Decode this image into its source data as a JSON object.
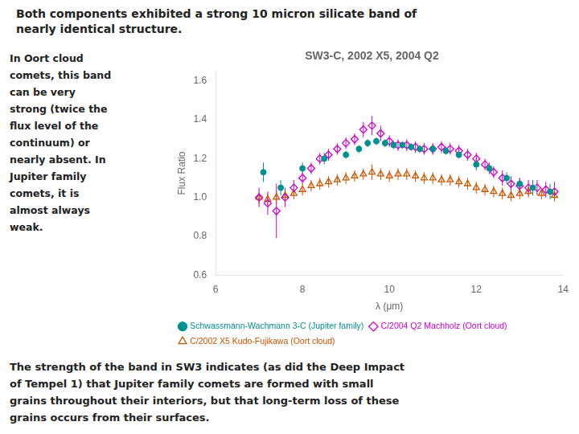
{
  "chart_data": {
    "type": "scatter",
    "title": "SW3-C, 2002 X5, 2004 Q2",
    "x_label": "λ (μm)",
    "y_label": "Flux Ratio",
    "xlim": [
      6,
      14
    ],
    "ylim": [
      0.6,
      1.65
    ],
    "xticks": [
      6,
      8,
      10,
      12,
      14
    ],
    "yticks": [
      0.6,
      0.8,
      {
        "value": 1,
        "label": "1.0"
      },
      1.2,
      1.4,
      1.6
    ],
    "grid": false,
    "legend": "bottom",
    "annotations": [
      [
        "Both components exhibited a strong 10 micron silicate band of",
        "nearly identical structure."
      ],
      [
        "In Oort cloud",
        "comets, this band",
        "can be very",
        "strong (twice the",
        "flux level of the",
        "continuum) or",
        "nearly absent. In",
        "Jupiter family",
        "comets, it is",
        "almost always",
        "weak."
      ],
      [
        "The strength of the band in SW3 indicates (as did the Deep Impact",
        "of Tempel 1) that Jupiter family comets are formed with small",
        "grains throughout their interiors, but that long-term loss of these",
        "grains occurs from their surfaces."
      ]
    ],
    "series": [
      {
        "name": "Schwassmann-Wachmann 3-C (Jupiter family)",
        "color": "#009090",
        "marker": "circle",
        "x": [
          7.1,
          7.5,
          8.0,
          8.5,
          9.0,
          9.3,
          9.5,
          9.7,
          9.9,
          10.1,
          10.3,
          10.5,
          10.7,
          11.0,
          11.3,
          11.6,
          12.0,
          12.3,
          12.7,
          13.0,
          13.3,
          13.7
        ],
        "values": [
          1.13,
          1.05,
          1.15,
          1.2,
          1.22,
          1.25,
          1.28,
          1.29,
          1.28,
          1.27,
          1.27,
          1.26,
          1.25,
          1.25,
          1.24,
          1.22,
          1.17,
          1.15,
          1.1,
          1.07,
          1.05,
          1.03
        ],
        "errors": [
          0.05,
          0.04,
          0.03,
          0.03,
          0.02,
          0.02,
          0.02,
          0.02,
          0.02,
          0.02,
          0.02,
          0.02,
          0.02,
          0.02,
          0.02,
          0.02,
          0.03,
          0.03,
          0.03,
          0.03,
          0.04,
          0.04
        ]
      },
      {
        "name": "C/2004 Q2 Machholz (Oort cloud)",
        "color": "#CC00CC",
        "marker": "diamond-open",
        "x": [
          7.0,
          7.2,
          7.4,
          7.6,
          7.8,
          8.0,
          8.2,
          8.4,
          8.6,
          8.8,
          9.0,
          9.2,
          9.4,
          9.6,
          9.8,
          10.0,
          10.2,
          10.4,
          10.6,
          10.8,
          11.0,
          11.2,
          11.4,
          11.6,
          11.8,
          12.0,
          12.2,
          12.4,
          12.6,
          12.8,
          13.0,
          13.2,
          13.4,
          13.6,
          13.8
        ],
        "values": [
          1.0,
          0.97,
          0.93,
          1.0,
          1.05,
          1.1,
          1.15,
          1.2,
          1.22,
          1.25,
          1.28,
          1.3,
          1.35,
          1.37,
          1.33,
          1.29,
          1.27,
          1.27,
          1.26,
          1.25,
          1.25,
          1.26,
          1.25,
          1.24,
          1.22,
          1.2,
          1.17,
          1.13,
          1.1,
          1.07,
          1.06,
          1.05,
          1.05,
          1.04,
          1.03
        ],
        "errors": [
          0.05,
          0.06,
          0.14,
          0.05,
          0.04,
          0.03,
          0.03,
          0.03,
          0.03,
          0.03,
          0.03,
          0.03,
          0.04,
          0.05,
          0.04,
          0.03,
          0.03,
          0.03,
          0.03,
          0.03,
          0.03,
          0.03,
          0.03,
          0.03,
          0.03,
          0.03,
          0.03,
          0.03,
          0.04,
          0.04,
          0.04,
          0.04,
          0.04,
          0.04,
          0.05
        ]
      },
      {
        "name": "C/2002 X5 Kudo-Fujikawa (Oort cloud)",
        "color": "#CC5500",
        "marker": "triangle-open",
        "x": [
          7.0,
          7.2,
          7.4,
          7.6,
          7.8,
          8.0,
          8.2,
          8.4,
          8.6,
          8.8,
          9.0,
          9.2,
          9.4,
          9.6,
          9.8,
          10.0,
          10.2,
          10.4,
          10.6,
          10.8,
          11.0,
          11.2,
          11.4,
          11.6,
          11.8,
          12.0,
          12.2,
          12.4,
          12.6,
          12.8,
          13.0,
          13.2,
          13.5,
          13.8
        ],
        "values": [
          1.0,
          0.99,
          1.0,
          1.01,
          1.02,
          1.04,
          1.06,
          1.07,
          1.08,
          1.09,
          1.1,
          1.11,
          1.12,
          1.13,
          1.12,
          1.11,
          1.12,
          1.12,
          1.11,
          1.1,
          1.1,
          1.09,
          1.09,
          1.08,
          1.07,
          1.05,
          1.04,
          1.03,
          1.02,
          1.01,
          1.02,
          1.03,
          1.02,
          1.01
        ],
        "errors": [
          0.03,
          0.03,
          0.03,
          0.03,
          0.03,
          0.03,
          0.03,
          0.03,
          0.03,
          0.03,
          0.03,
          0.03,
          0.03,
          0.04,
          0.03,
          0.03,
          0.03,
          0.03,
          0.03,
          0.03,
          0.03,
          0.03,
          0.03,
          0.03,
          0.03,
          0.03,
          0.03,
          0.03,
          0.03,
          0.03,
          0.03,
          0.03,
          0.03,
          0.03
        ]
      }
    ]
  }
}
